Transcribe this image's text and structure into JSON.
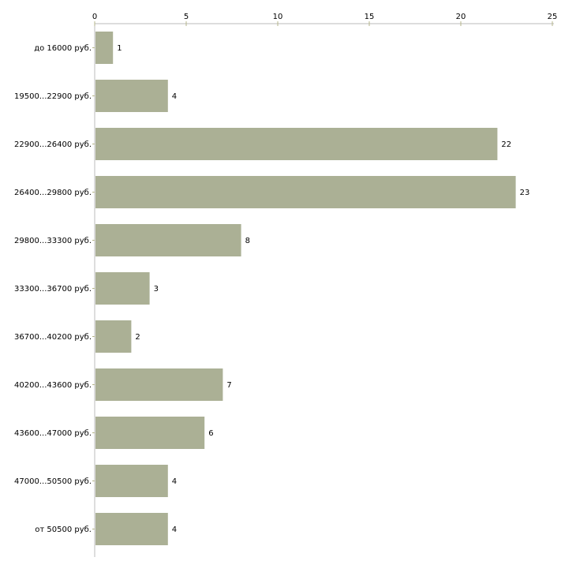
{
  "chart_data": {
    "type": "bar",
    "orientation": "horizontal",
    "title": "",
    "xlabel": "",
    "ylabel": "",
    "xlim": [
      0,
      25
    ],
    "x_ticks": [
      0,
      5,
      10,
      15,
      20,
      25
    ],
    "grid": false,
    "categories": [
      "до 16000 руб.",
      "19500...22900 руб.",
      "22900...26400 руб.",
      "26400...29800 руб.",
      "29800...33300 руб.",
      "33300...36700 руб.",
      "36700...40200 руб.",
      "40200...43600 руб.",
      "43600...47000 руб.",
      "47000...50500 руб.",
      "от 50500 руб."
    ],
    "values": [
      1,
      4,
      22,
      23,
      8,
      3,
      2,
      7,
      6,
      4,
      4
    ],
    "colors": {
      "bar": "#abb095",
      "axis": "#bbbbbb",
      "tick": "#b5b58a"
    }
  }
}
